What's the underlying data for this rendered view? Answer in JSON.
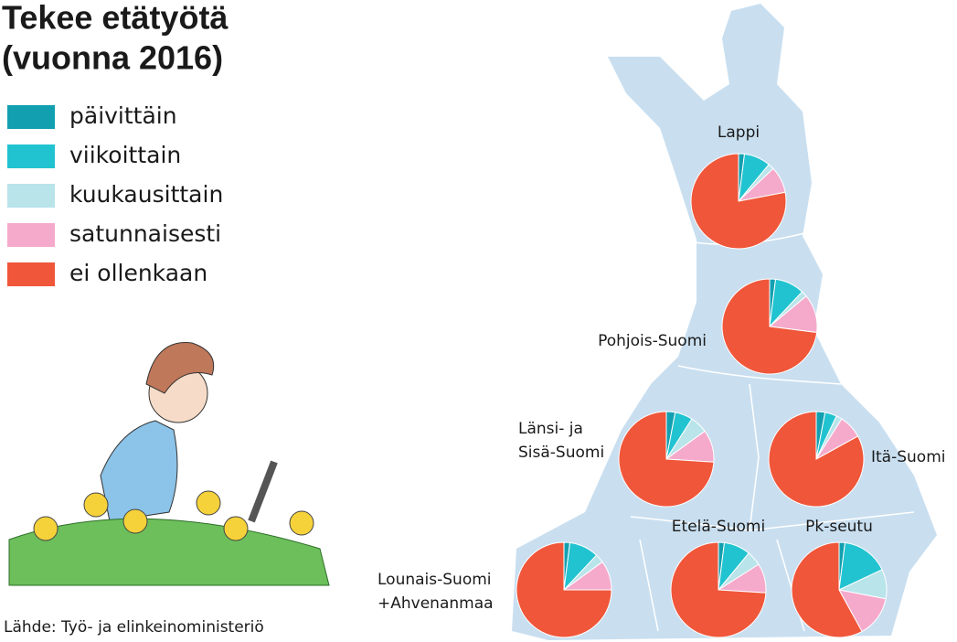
{
  "title": [
    "Tekee etätyötä",
    "(vuonna 2016)"
  ],
  "legend": {
    "categories": [
      "päivittäin",
      "viikoittain",
      "kuukausittain",
      "satunnaisesti",
      "ei ollenkaan"
    ],
    "colors": [
      "#12a0b0",
      "#22c3d0",
      "#b8e4ea",
      "#f5aacb",
      "#f0563a"
    ]
  },
  "source": "Lähde: Työ- ja elinkeinoministeriö",
  "chart_data": [
    {
      "type": "pie",
      "title": [
        "Lappi"
      ],
      "values": [
        2,
        9,
        2,
        9,
        78
      ]
    },
    {
      "type": "pie",
      "title": [
        "Pohjois-Suomi"
      ],
      "values": [
        2,
        10,
        2,
        13,
        73
      ]
    },
    {
      "type": "pie",
      "title": [
        "Länsi- ja",
        "Sisä-Suomi"
      ],
      "values": [
        3,
        6,
        6,
        11,
        74
      ]
    },
    {
      "type": "pie",
      "title": [
        "Itä-Suomi"
      ],
      "values": [
        3,
        4,
        2,
        8,
        83
      ]
    },
    {
      "type": "pie",
      "title": [
        "Lounais-Suomi",
        "+Ahvenanmaa"
      ],
      "values": [
        2,
        10,
        3,
        10,
        75
      ]
    },
    {
      "type": "pie",
      "title": [
        "Etelä-Suomi"
      ],
      "values": [
        2,
        9,
        5,
        10,
        74
      ]
    },
    {
      "type": "pie",
      "title": [
        "Pk-seutu"
      ],
      "values": [
        2,
        16,
        10,
        14,
        58
      ]
    }
  ]
}
